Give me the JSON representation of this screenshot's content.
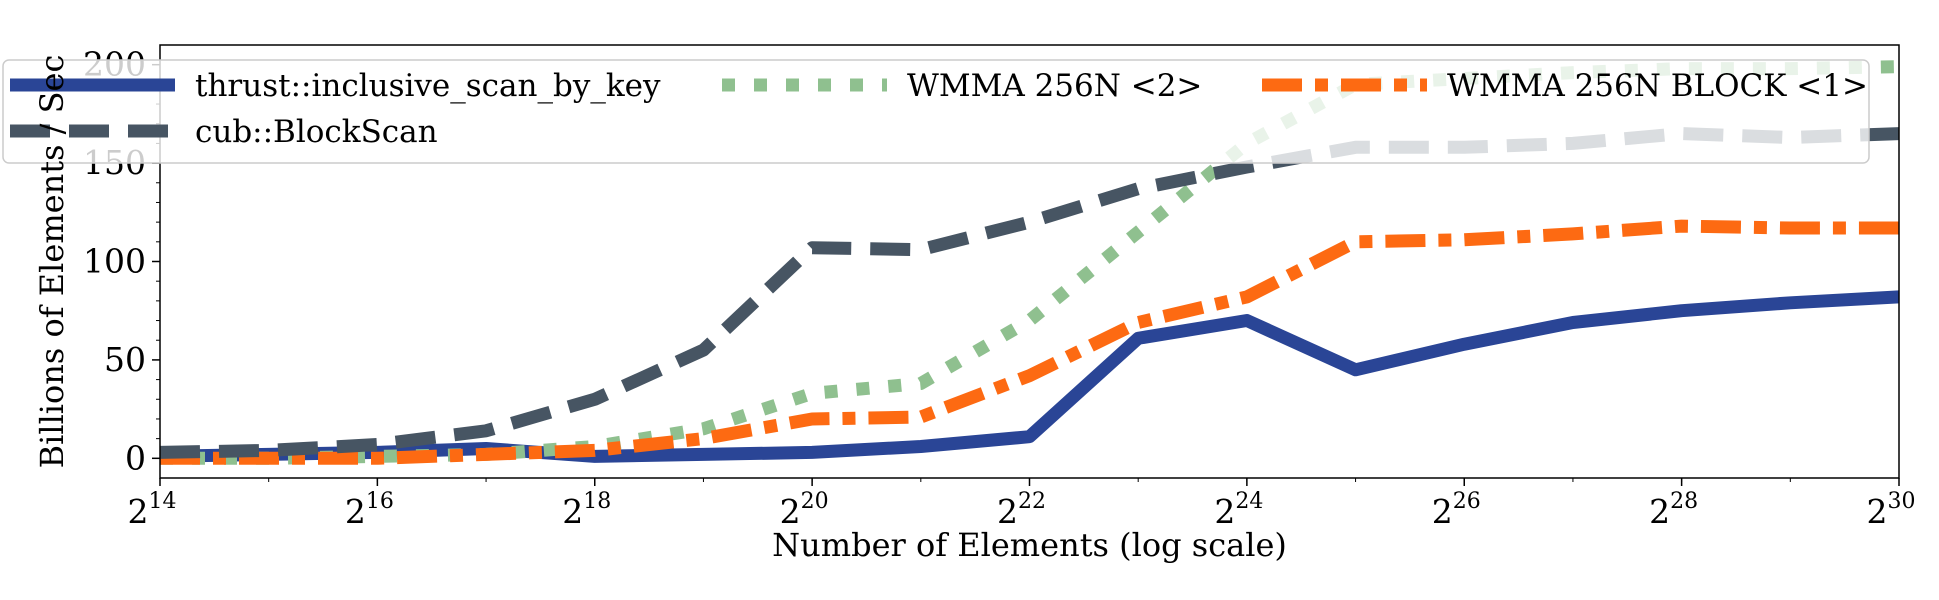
{
  "chart_data": {
    "type": "line",
    "xlabel": "Number of Elements (log scale)",
    "ylabel": "Billions of Elements / Sec",
    "x_scale": "log2",
    "xlim": [
      16384,
      1073741824
    ],
    "ylim": [
      -10,
      210
    ],
    "x_ticks": [
      {
        "base": "2",
        "exp": "14",
        "value": 16384
      },
      {
        "base": "2",
        "exp": "16",
        "value": 65536
      },
      {
        "base": "2",
        "exp": "18",
        "value": 262144
      },
      {
        "base": "2",
        "exp": "20",
        "value": 1048576
      },
      {
        "base": "2",
        "exp": "22",
        "value": 4194304
      },
      {
        "base": "2",
        "exp": "24",
        "value": 16777216
      },
      {
        "base": "2",
        "exp": "26",
        "value": 67108864
      },
      {
        "base": "2",
        "exp": "28",
        "value": 268435456
      },
      {
        "base": "2",
        "exp": "30",
        "value": 1073741824
      }
    ],
    "y_ticks": [
      "0",
      "50",
      "100",
      "150",
      "200"
    ],
    "legend_position": "top, overlapping plot (3 columns)",
    "x": [
      16384,
      32768,
      65536,
      131072,
      262144,
      524288,
      1048576,
      2097152,
      4194304,
      8388608,
      16777216,
      33554432,
      67108864,
      134217728,
      268435456,
      536870912,
      1073741824
    ],
    "series": [
      {
        "name": "thrust::inclusive_scan_by_key",
        "color": "#2a4596",
        "style": "solid",
        "values": [
          1,
          2,
          3,
          5,
          1,
          2,
          3,
          6,
          11,
          61,
          70,
          45,
          58,
          69,
          75,
          79,
          82
        ]
      },
      {
        "name": "WMMA 256N <2>",
        "color": "#8fc08f",
        "style": "dotted",
        "values": [
          0,
          0,
          1,
          2,
          6,
          15,
          33,
          38,
          70,
          115,
          160,
          190,
          193,
          196,
          198,
          198,
          199
        ]
      },
      {
        "name": "WMMA 256N BLOCK <1>",
        "color": "#fd6a12",
        "style": "dashdot",
        "values": [
          0,
          0,
          0,
          2,
          4,
          10,
          20,
          21,
          42,
          69,
          82,
          110,
          111,
          114,
          118,
          117,
          117
        ]
      },
      {
        "name": "cub::BlockScan",
        "color": "#475563",
        "style": "dashed",
        "values": [
          3,
          4,
          7,
          14,
          30,
          55,
          107,
          106,
          120,
          137,
          148,
          158,
          158,
          160,
          165,
          163,
          165
        ]
      }
    ]
  }
}
